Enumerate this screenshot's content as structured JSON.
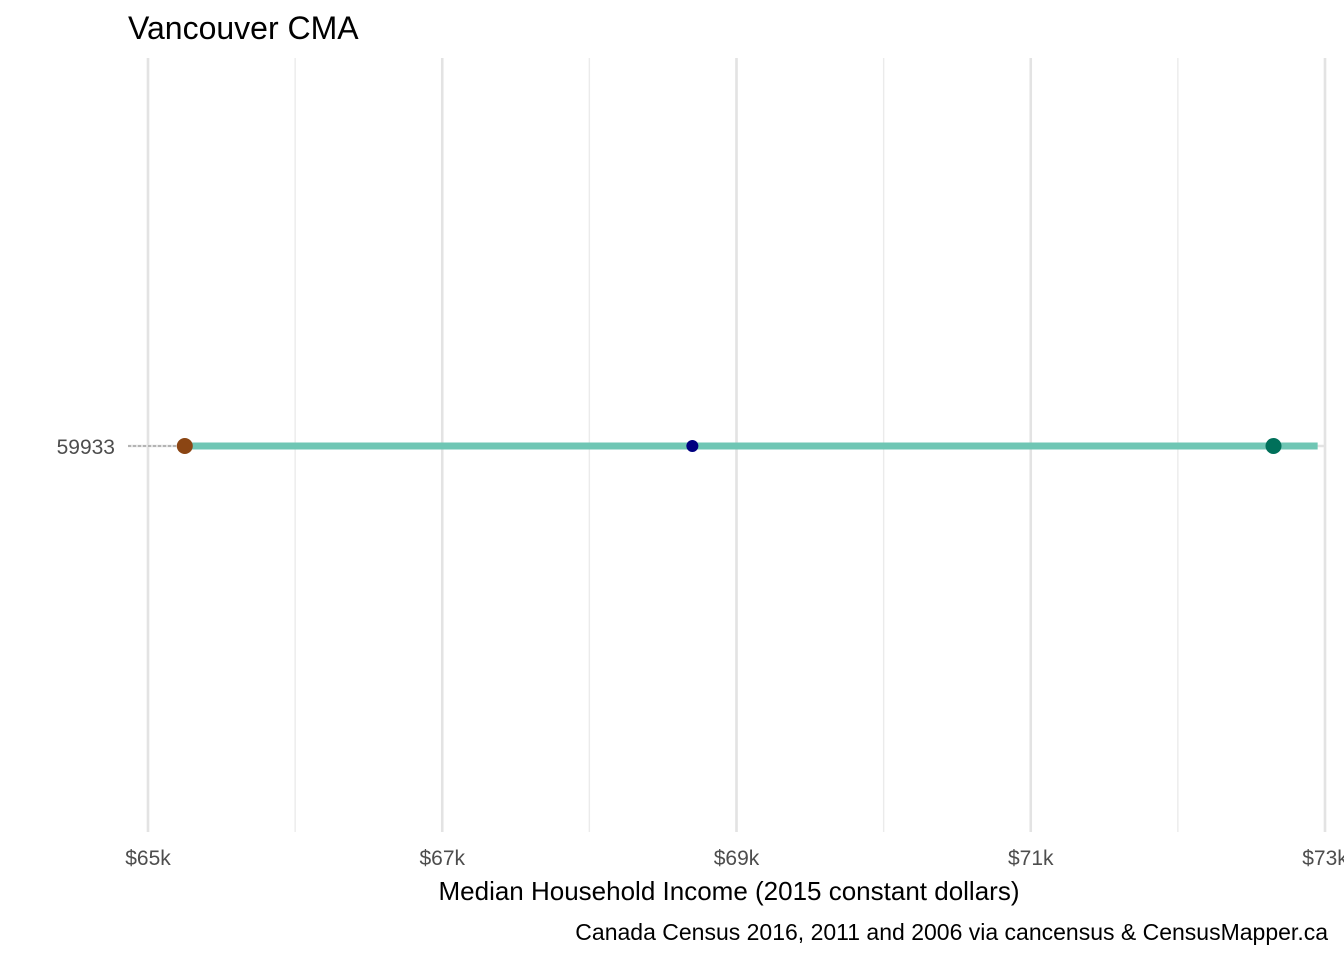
{
  "chart_data": {
    "type": "dumbbell",
    "title": "Vancouver CMA",
    "xlabel": "Median Household Income (2015 constant dollars)",
    "ylabel": "",
    "caption": "Canada Census 2016, 2011 and 2006 via cancensus & CensusMapper.ca",
    "xlim": [
      65000,
      73000
    ],
    "x_ticks": [
      65000,
      67000,
      69000,
      71000,
      73000
    ],
    "x_tick_labels": [
      "$65k",
      "$67k",
      "$69k",
      "$71k",
      "$73k"
    ],
    "x_minor_ticks": [
      66000,
      68000,
      70000,
      72000
    ],
    "categories": [
      "59933"
    ],
    "segment": {
      "start": 65250,
      "end": 72950,
      "color": "#6fc6b4"
    },
    "points": [
      {
        "category": "59933",
        "x": 65250,
        "color": "#8b4513",
        "size": "large"
      },
      {
        "category": "59933",
        "x": 68700,
        "color": "#000080",
        "size": "small"
      },
      {
        "category": "59933",
        "x": 72650,
        "color": "#00705a",
        "size": "large"
      }
    ],
    "grid": true,
    "legend": "none"
  }
}
